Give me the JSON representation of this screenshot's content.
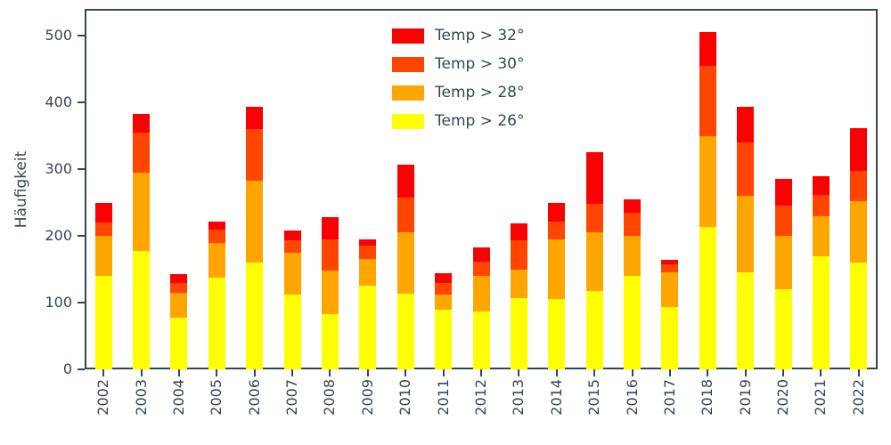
{
  "chart_data": {
    "type": "bar",
    "stacked": true,
    "title": "",
    "xlabel": "",
    "ylabel": "Häufigkeit",
    "categories": [
      "2002",
      "2003",
      "2004",
      "2005",
      "2006",
      "2007",
      "2008",
      "2009",
      "2010",
      "2011",
      "2012",
      "2013",
      "2014",
      "2015",
      "2016",
      "2017",
      "2018",
      "2019",
      "2020",
      "2021",
      "2022"
    ],
    "series": [
      {
        "name": "Temp > 26°",
        "color": "#ffff00",
        "values": [
          140,
          178,
          78,
          138,
          160,
          112,
          83,
          126,
          113,
          90,
          87,
          107,
          106,
          118,
          140,
          94,
          213,
          145,
          120,
          170,
          160
        ]
      },
      {
        "name": "Temp > 28°",
        "color": "#ffa500",
        "values": [
          60,
          117,
          37,
          52,
          123,
          63,
          65,
          39,
          92,
          22,
          53,
          43,
          89,
          87,
          60,
          51,
          137,
          115,
          80,
          60,
          92
        ]
      },
      {
        "name": "Temp > 30°",
        "color": "#ff4500",
        "values": [
          20,
          60,
          15,
          20,
          77,
          18,
          47,
          20,
          53,
          18,
          22,
          43,
          27,
          43,
          35,
          13,
          105,
          80,
          45,
          32,
          45
        ]
      },
      {
        "name": "Temp > 32°",
        "color": "#fa0000",
        "values": [
          30,
          28,
          13,
          11,
          33,
          15,
          33,
          10,
          49,
          14,
          21,
          26,
          27,
          78,
          20,
          6,
          50,
          53,
          41,
          27,
          65
        ]
      }
    ],
    "legend": {
      "position": "upper center",
      "frame": false,
      "entries": [
        "Temp > 32°",
        "Temp > 30°",
        "Temp > 28°",
        "Temp > 26°"
      ]
    },
    "yticks": [
      0,
      100,
      200,
      300,
      400,
      500
    ],
    "ylim": [
      0,
      540
    ],
    "grid": false,
    "axis_color": "#37474f",
    "text_color": "#37474f"
  }
}
